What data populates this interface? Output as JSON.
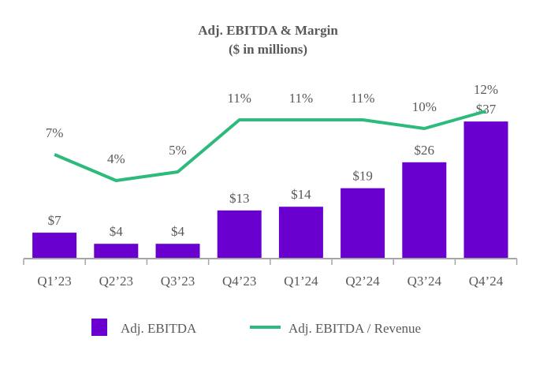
{
  "chart_data": {
    "type": "bar",
    "title": "Adj. EBITDA & Margin",
    "subtitle": "($ in millions)",
    "categories": [
      "Q1’23",
      "Q2’23",
      "Q3’23",
      "Q4’23",
      "Q1’24",
      "Q2’24",
      "Q3’24",
      "Q4’24"
    ],
    "series": [
      {
        "name": "Adj. EBITDA",
        "type": "bar",
        "values": [
          7,
          4,
          4,
          13,
          14,
          19,
          26,
          37
        ],
        "labels": [
          "$7",
          "$4",
          "$4",
          "$13",
          "$14",
          "$19",
          "$26",
          "$37"
        ],
        "color": "#6a00d0"
      },
      {
        "name": "Adj. EBITDA / Revenue",
        "type": "line",
        "values": [
          7,
          4,
          5,
          11,
          11,
          11,
          10,
          12
        ],
        "labels": [
          "7%",
          "4%",
          "5%",
          "11%",
          "11%",
          "11%",
          "10%",
          "12%"
        ],
        "color": "#2dba7c"
      }
    ],
    "xlabel": "",
    "ylabel": "",
    "grid": false,
    "legend": "bottom",
    "axis_color": "#a6a6a6"
  }
}
